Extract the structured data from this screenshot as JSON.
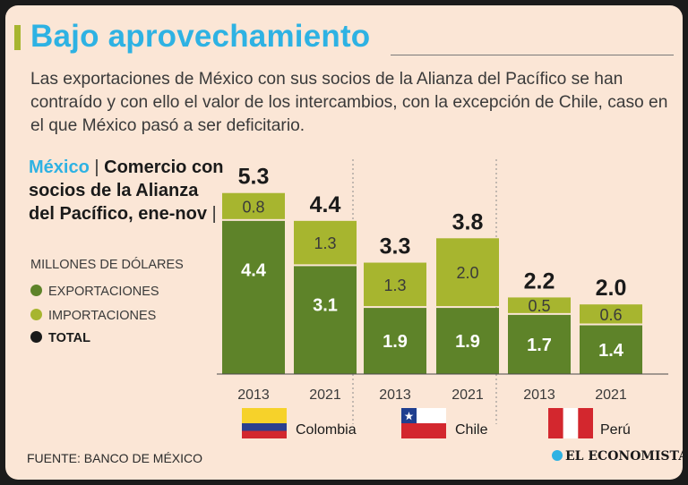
{
  "header": {
    "title": "Bajo aprovechamiento",
    "subtitle": "Las exportaciones de México con sus socios de la Alianza del Pacífico se han contraído y con ello el valor de los intercambios, con la excepción de Chile, caso en el que México pasó a ser deficitario."
  },
  "panel": {
    "heading_country": "México",
    "heading_sep1": "|",
    "heading_rest": "Comercio con socios de la Alianza del Pacífico, ene-nov",
    "heading_sep2": "|",
    "units": "MILLONES DE DÓLARES",
    "legend": {
      "exports": "EXPORTACIONES",
      "imports": "IMPORTACIONES",
      "total": "TOTAL"
    }
  },
  "footer": {
    "source": "FUENTE: BANCO DE MÉXICO",
    "logo": "EL ECONOMISTA"
  },
  "colors": {
    "background": "#fbe6d6",
    "title": "#2eb2e3",
    "exports": "#5e8329",
    "imports": "#a7b52f",
    "total": "#1a1a1a"
  },
  "chart_data": {
    "type": "bar",
    "stacked": true,
    "categories": [
      "2013",
      "2021",
      "2013",
      "2021",
      "2013",
      "2021"
    ],
    "groups": [
      "Colombia",
      "Chile",
      "Perú"
    ],
    "series": [
      {
        "name": "EXPORTACIONES",
        "values": [
          4.4,
          3.1,
          1.9,
          1.9,
          1.7,
          1.4
        ]
      },
      {
        "name": "IMPORTACIONES",
        "values": [
          0.8,
          1.3,
          1.3,
          2.0,
          0.5,
          0.6
        ]
      }
    ],
    "totals": [
      5.3,
      4.4,
      3.3,
      3.8,
      2.2,
      2.0
    ],
    "export_labels": [
      "4.4",
      "3.1",
      "1.9",
      "1.9",
      "1.7",
      "1.4"
    ],
    "import_labels": [
      "0.8",
      "1.3",
      "1.3",
      "2.0",
      "0.5",
      "0.6"
    ],
    "total_labels": [
      "5.3",
      "4.4",
      "3.3",
      "3.8",
      "2.2",
      "2.0"
    ],
    "ylabel": "MILLONES DE DÓLARES",
    "ylim": [
      0,
      5.3
    ]
  }
}
